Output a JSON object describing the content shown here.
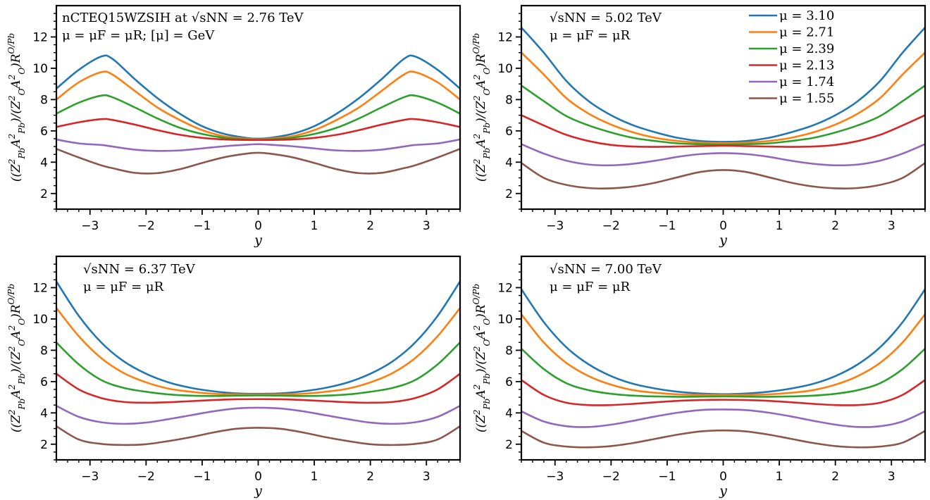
{
  "chart_data": [
    {
      "type": "line",
      "panel": "top-left",
      "title": "",
      "xlabel": "y",
      "ylabel": "((Z_Pb^2 A_Pb^2)/(Z_O^2 A_O^2)) R^{O/Pb}",
      "ylabel_display": "((Z²PbA²Pb)/(Z²OA²O))R^O/Pb",
      "xlim": [
        -3.6,
        3.6
      ],
      "ylim": [
        1,
        14
      ],
      "xticks": [
        -3,
        -2,
        -1,
        0,
        1,
        2,
        3
      ],
      "xtick_labels": [
        "−3",
        "−2",
        "−1",
        "0",
        "1",
        "2",
        "3"
      ],
      "yticks": [
        2,
        4,
        6,
        8,
        10,
        12
      ],
      "ytick_labels": [
        "2",
        "4",
        "6",
        "8",
        "10",
        "12"
      ],
      "annotation": [
        "nCTEQ15WZSIH at √sNN = 2.76 TeV",
        "μ = μF = μR;  [μ] = GeV"
      ],
      "x": [
        -3.6,
        -3.2,
        -2.8,
        -2.6,
        -2.2,
        -1.8,
        -1.4,
        -1.0,
        -0.6,
        -0.2,
        0.0,
        0.2,
        0.6,
        1.0,
        1.4,
        1.8,
        2.2,
        2.6,
        2.8,
        3.2,
        3.6
      ],
      "series": [
        {
          "name": "μ = 3.10",
          "values": [
            8.7,
            9.9,
            10.75,
            10.6,
            9.3,
            8.1,
            7.1,
            6.3,
            5.8,
            5.55,
            5.5,
            5.55,
            5.8,
            6.3,
            7.1,
            8.1,
            9.3,
            10.6,
            10.75,
            9.9,
            8.7
          ]
        },
        {
          "name": "μ = 2.71",
          "values": [
            8.0,
            9.1,
            9.75,
            9.6,
            8.55,
            7.5,
            6.7,
            6.05,
            5.65,
            5.5,
            5.45,
            5.5,
            5.65,
            6.05,
            6.7,
            7.5,
            8.55,
            9.6,
            9.75,
            9.1,
            8.0
          ]
        },
        {
          "name": "μ = 2.39",
          "values": [
            7.1,
            7.8,
            8.25,
            8.15,
            7.5,
            6.8,
            6.2,
            5.8,
            5.55,
            5.45,
            5.42,
            5.45,
            5.55,
            5.8,
            6.2,
            6.8,
            7.5,
            8.15,
            8.25,
            7.8,
            7.1
          ]
        },
        {
          "name": "μ = 2.13",
          "values": [
            6.25,
            6.55,
            6.75,
            6.7,
            6.4,
            6.05,
            5.75,
            5.55,
            5.45,
            5.42,
            5.42,
            5.42,
            5.45,
            5.55,
            5.75,
            6.05,
            6.4,
            6.7,
            6.75,
            6.55,
            6.25
          ]
        },
        {
          "name": "μ = 1.74",
          "values": [
            5.45,
            5.2,
            5.1,
            5.0,
            4.8,
            4.72,
            4.75,
            4.88,
            5.02,
            5.12,
            5.15,
            5.12,
            5.02,
            4.88,
            4.75,
            4.72,
            4.8,
            5.0,
            5.1,
            5.2,
            5.45
          ]
        },
        {
          "name": "μ = 1.55",
          "values": [
            4.85,
            4.3,
            3.8,
            3.62,
            3.32,
            3.3,
            3.55,
            3.95,
            4.32,
            4.55,
            4.6,
            4.55,
            4.32,
            3.95,
            3.55,
            3.3,
            3.32,
            3.62,
            3.8,
            4.3,
            4.85
          ]
        }
      ]
    },
    {
      "type": "line",
      "panel": "top-right",
      "xlabel": "y",
      "ylabel": "((Z_Pb^2 A_Pb^2)/(Z_O^2 A_O^2)) R^{O/Pb}",
      "ylabel_display": "((Z²PbA²Pb)/(Z²OA²O))R^O/Pb",
      "xlim": [
        -3.6,
        3.6
      ],
      "ylim": [
        1,
        14
      ],
      "xticks": [
        -3,
        -2,
        -1,
        0,
        1,
        2,
        3
      ],
      "xtick_labels": [
        "−3",
        "−2",
        "−1",
        "0",
        "1",
        "2",
        "3"
      ],
      "yticks": [
        2,
        4,
        6,
        8,
        10,
        12
      ],
      "ytick_labels": [
        "2",
        "4",
        "6",
        "8",
        "10",
        "12"
      ],
      "annotation": [
        "√sNN = 5.02 TeV",
        "μ = μF = μR"
      ],
      "legend": {
        "placement": "top-right",
        "entries": [
          "μ = 3.10",
          "μ = 2.71",
          "μ = 2.39",
          "μ = 2.13",
          "μ = 1.74",
          "μ = 1.55"
        ]
      },
      "x": [
        -3.6,
        -3.2,
        -2.8,
        -2.4,
        -2.0,
        -1.6,
        -1.2,
        -0.8,
        -0.4,
        0.0,
        0.4,
        0.8,
        1.2,
        1.6,
        2.0,
        2.4,
        2.8,
        3.2,
        3.6
      ],
      "series": [
        {
          "name": "μ = 3.10",
          "values": [
            12.6,
            11.0,
            9.2,
            7.9,
            7.0,
            6.35,
            5.9,
            5.55,
            5.35,
            5.3,
            5.35,
            5.55,
            5.9,
            6.35,
            7.0,
            7.9,
            9.2,
            11.0,
            12.6
          ]
        },
        {
          "name": "μ = 2.71",
          "values": [
            11.0,
            9.6,
            8.1,
            7.1,
            6.4,
            5.9,
            5.55,
            5.35,
            5.25,
            5.22,
            5.25,
            5.35,
            5.55,
            5.9,
            6.4,
            7.1,
            8.1,
            9.6,
            11.0
          ]
        },
        {
          "name": "μ = 2.39",
          "values": [
            8.9,
            7.9,
            6.95,
            6.35,
            5.9,
            5.55,
            5.35,
            5.2,
            5.15,
            5.12,
            5.15,
            5.2,
            5.35,
            5.55,
            5.9,
            6.35,
            6.95,
            7.9,
            8.9
          ]
        },
        {
          "name": "μ = 2.13",
          "values": [
            7.0,
            6.35,
            5.75,
            5.35,
            5.1,
            5.0,
            4.98,
            5.0,
            5.03,
            5.05,
            5.03,
            5.0,
            4.98,
            5.0,
            5.1,
            5.35,
            5.75,
            6.35,
            7.0
          ]
        },
        {
          "name": "μ = 1.74",
          "values": [
            5.15,
            4.55,
            4.1,
            3.85,
            3.8,
            3.9,
            4.1,
            4.35,
            4.52,
            4.58,
            4.52,
            4.35,
            4.1,
            3.9,
            3.8,
            3.85,
            4.1,
            4.55,
            5.15
          ]
        },
        {
          "name": "μ = 1.55",
          "values": [
            3.95,
            3.0,
            2.55,
            2.35,
            2.33,
            2.45,
            2.7,
            3.05,
            3.38,
            3.5,
            3.38,
            3.05,
            2.7,
            2.45,
            2.33,
            2.35,
            2.55,
            3.0,
            3.95
          ]
        }
      ]
    },
    {
      "type": "line",
      "panel": "bottom-left",
      "xlabel": "y",
      "ylabel": "((Z_Pb^2 A_Pb^2)/(Z_O^2 A_O^2)) R^{O/Pb}",
      "ylabel_display": "((Z²PbA²Pb)/(Z²OA²O))R^O/Pb",
      "xlim": [
        -3.6,
        3.6
      ],
      "ylim": [
        1,
        14
      ],
      "xticks": [
        -3,
        -2,
        -1,
        0,
        1,
        2,
        3
      ],
      "xtick_labels": [
        "−3",
        "−2",
        "−1",
        "0",
        "1",
        "2",
        "3"
      ],
      "yticks": [
        2,
        4,
        6,
        8,
        10,
        12
      ],
      "ytick_labels": [
        "2",
        "4",
        "6",
        "8",
        "10",
        "12"
      ],
      "annotation": [
        "√sNN = 6.37 TeV",
        "μ = μF = μR"
      ],
      "x": [
        -3.6,
        -3.2,
        -2.8,
        -2.4,
        -2.0,
        -1.6,
        -1.2,
        -0.8,
        -0.4,
        0.0,
        0.4,
        0.8,
        1.2,
        1.6,
        2.0,
        2.4,
        2.8,
        3.2,
        3.6
      ],
      "series": [
        {
          "name": "μ = 3.10",
          "values": [
            12.4,
            10.2,
            8.5,
            7.3,
            6.5,
            5.95,
            5.6,
            5.38,
            5.25,
            5.22,
            5.25,
            5.38,
            5.6,
            5.95,
            6.5,
            7.3,
            8.5,
            10.2,
            12.4
          ]
        },
        {
          "name": "μ = 2.71",
          "values": [
            10.7,
            8.9,
            7.5,
            6.55,
            5.95,
            5.55,
            5.35,
            5.22,
            5.18,
            5.17,
            5.18,
            5.22,
            5.35,
            5.55,
            5.95,
            6.55,
            7.5,
            8.9,
            10.7
          ]
        },
        {
          "name": "μ = 2.39",
          "values": [
            8.5,
            7.1,
            6.1,
            5.6,
            5.35,
            5.18,
            5.1,
            5.08,
            5.1,
            5.12,
            5.1,
            5.08,
            5.1,
            5.18,
            5.35,
            5.6,
            6.1,
            7.1,
            8.5
          ]
        },
        {
          "name": "μ = 2.13",
          "values": [
            6.5,
            5.5,
            4.95,
            4.7,
            4.65,
            4.68,
            4.75,
            4.82,
            4.87,
            4.88,
            4.87,
            4.82,
            4.75,
            4.68,
            4.65,
            4.7,
            4.95,
            5.5,
            6.5
          ]
        },
        {
          "name": "μ = 1.74",
          "values": [
            4.45,
            3.75,
            3.4,
            3.3,
            3.38,
            3.6,
            3.85,
            4.1,
            4.28,
            4.33,
            4.28,
            4.1,
            3.85,
            3.6,
            3.38,
            3.3,
            3.4,
            3.75,
            4.45
          ]
        },
        {
          "name": "μ = 1.55",
          "values": [
            3.15,
            2.3,
            2.02,
            1.95,
            2.0,
            2.2,
            2.45,
            2.75,
            2.98,
            3.05,
            2.98,
            2.75,
            2.45,
            2.2,
            2.0,
            1.95,
            2.02,
            2.3,
            3.15
          ]
        }
      ]
    },
    {
      "type": "line",
      "panel": "bottom-right",
      "xlabel": "y",
      "ylabel": "((Z_Pb^2 A_Pb^2)/(Z_O^2 A_O^2)) R^{O/Pb}",
      "ylabel_display": "((Z²PbA²Pb)/(Z²OA²O))R^O/Pb",
      "xlim": [
        -3.6,
        3.6
      ],
      "ylim": [
        1,
        14
      ],
      "xticks": [
        -3,
        -2,
        -1,
        0,
        1,
        2,
        3
      ],
      "xtick_labels": [
        "−3",
        "−2",
        "−1",
        "0",
        "1",
        "2",
        "3"
      ],
      "yticks": [
        2,
        4,
        6,
        8,
        10,
        12
      ],
      "ytick_labels": [
        "2",
        "4",
        "6",
        "8",
        "10",
        "12"
      ],
      "annotation": [
        "√sNN = 7.00 TeV",
        "μ = μF = μR"
      ],
      "x": [
        -3.6,
        -3.2,
        -2.8,
        -2.4,
        -2.0,
        -1.6,
        -1.2,
        -0.8,
        -0.4,
        0.0,
        0.4,
        0.8,
        1.2,
        1.6,
        2.0,
        2.4,
        2.8,
        3.2,
        3.6
      ],
      "series": [
        {
          "name": "μ = 3.10",
          "values": [
            11.9,
            9.8,
            8.2,
            7.1,
            6.35,
            5.85,
            5.55,
            5.35,
            5.24,
            5.2,
            5.24,
            5.35,
            5.55,
            5.85,
            6.35,
            7.1,
            8.2,
            9.8,
            11.9
          ]
        },
        {
          "name": "μ = 2.71",
          "values": [
            10.3,
            8.5,
            7.2,
            6.35,
            5.8,
            5.45,
            5.28,
            5.18,
            5.15,
            5.15,
            5.15,
            5.18,
            5.28,
            5.45,
            5.8,
            6.35,
            7.2,
            8.5,
            10.3
          ]
        },
        {
          "name": "μ = 2.39",
          "values": [
            8.1,
            6.8,
            5.9,
            5.45,
            5.22,
            5.1,
            5.05,
            5.03,
            5.04,
            5.05,
            5.04,
            5.03,
            5.05,
            5.1,
            5.22,
            5.45,
            5.9,
            6.8,
            8.1
          ]
        },
        {
          "name": "μ = 2.13",
          "values": [
            6.1,
            5.15,
            4.65,
            4.5,
            4.5,
            4.58,
            4.68,
            4.77,
            4.82,
            4.84,
            4.82,
            4.77,
            4.68,
            4.58,
            4.5,
            4.5,
            4.65,
            5.15,
            6.1
          ]
        },
        {
          "name": "μ = 1.74",
          "values": [
            4.1,
            3.45,
            3.15,
            3.1,
            3.25,
            3.5,
            3.78,
            4.02,
            4.18,
            4.22,
            4.18,
            4.02,
            3.78,
            3.5,
            3.25,
            3.1,
            3.15,
            3.45,
            4.1
          ]
        },
        {
          "name": "μ = 1.55",
          "values": [
            2.85,
            2.1,
            1.85,
            1.8,
            1.88,
            2.08,
            2.35,
            2.62,
            2.82,
            2.88,
            2.82,
            2.62,
            2.35,
            2.08,
            1.88,
            1.8,
            1.85,
            2.1,
            2.85
          ]
        }
      ]
    }
  ],
  "colors": {
    "series": [
      "#1f77b4",
      "#ff7f0e",
      "#2ca02c",
      "#d62728",
      "#9467bd",
      "#8c564b"
    ],
    "axes": "#000000",
    "background": "#ffffff"
  }
}
